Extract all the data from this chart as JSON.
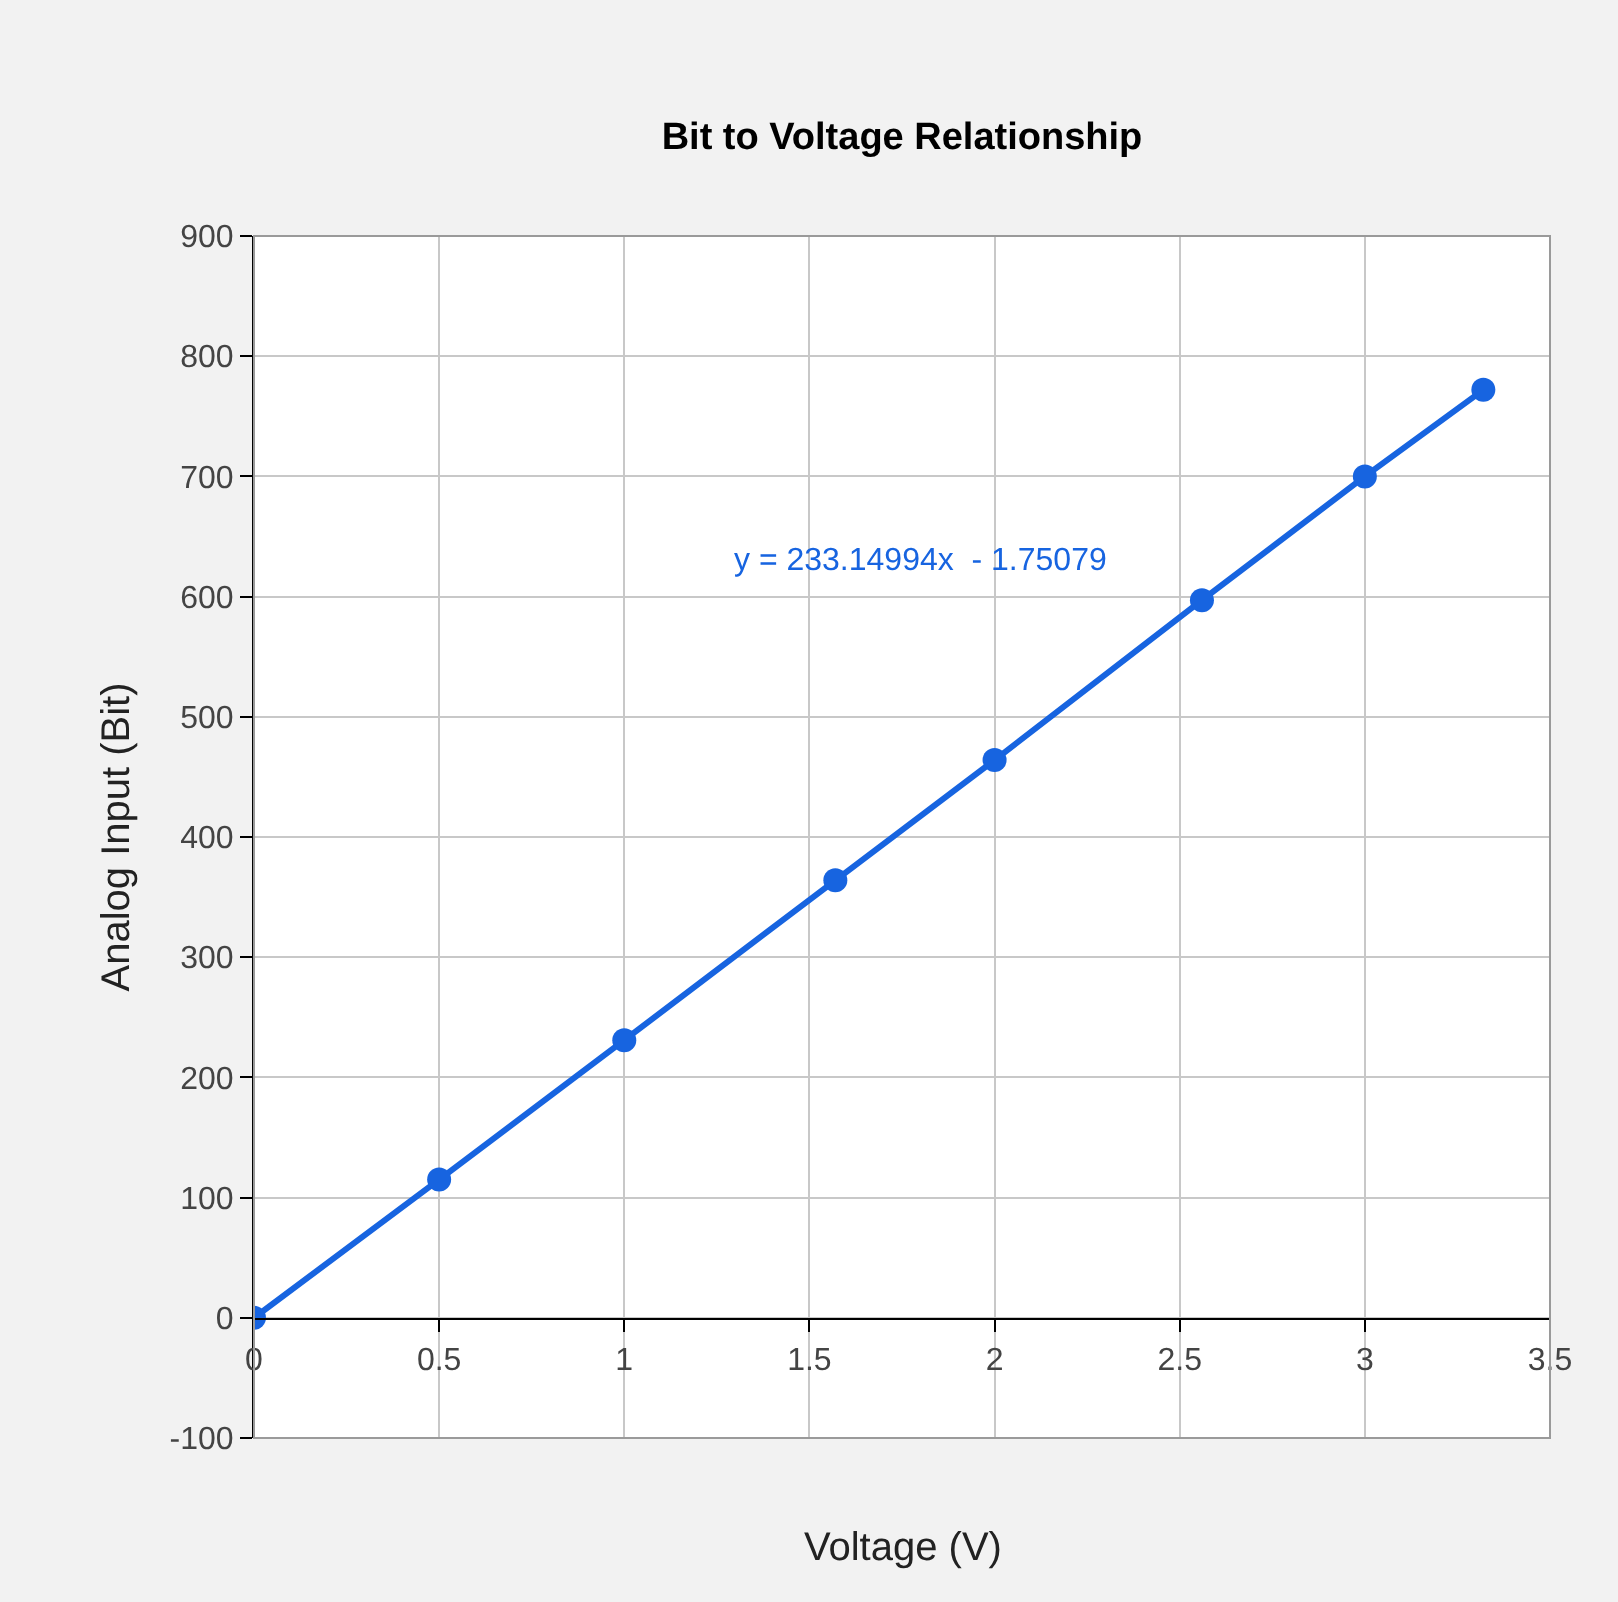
{
  "chart_data": {
    "type": "line",
    "title": "Bit to Voltage Relationship",
    "xlabel": "Voltage (V)",
    "ylabel": "Analog Input (Bit)",
    "x": [
      0,
      0.5,
      1,
      1.57,
      2,
      2.56,
      3,
      3.32
    ],
    "series": [
      {
        "color": "#1764e0",
        "values": [
          0,
          115,
          231,
          364,
          464,
          597,
          700,
          772
        ]
      }
    ],
    "annotations": [
      "y = 233.14994x  - 1.75079"
    ],
    "xlim": [
      0,
      3.5
    ],
    "xticks": [
      0,
      0.5,
      1,
      1.5,
      2,
      2.5,
      3,
      3.5
    ],
    "ylim": [
      -100,
      900
    ],
    "yticks": [
      -100,
      0,
      100,
      200,
      300,
      400,
      500,
      600,
      700,
      800,
      900
    ],
    "grid": true,
    "marker": "circle",
    "line_style": "solid"
  }
}
